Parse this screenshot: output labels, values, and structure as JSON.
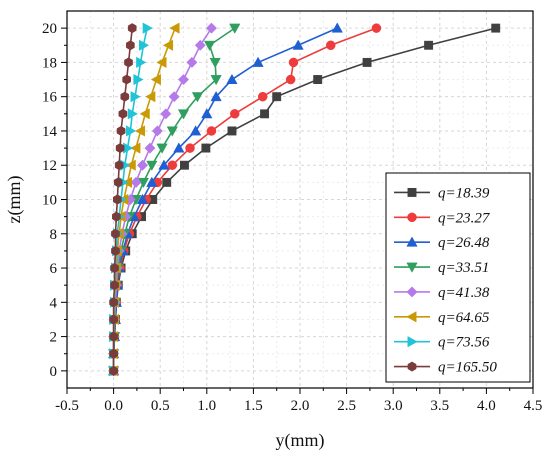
{
  "chart_data": {
    "type": "line",
    "xlabel": "y(mm)",
    "ylabel": "z(mm)",
    "xlim": [
      -0.5,
      4.5
    ],
    "ylim": [
      -1,
      21
    ],
    "x_ticks": [
      "-0.5",
      "0.0",
      "0.5",
      "1.0",
      "1.5",
      "2.0",
      "2.5",
      "3.0",
      "3.5",
      "4.0",
      "4.5"
    ],
    "y_ticks": [
      "0",
      "2",
      "4",
      "6",
      "8",
      "10",
      "12",
      "14",
      "16",
      "18",
      "20"
    ],
    "grid": true,
    "legend_position": "bottom-right",
    "z": [
      0,
      1,
      2,
      3,
      4,
      5,
      6,
      7,
      8,
      9,
      10,
      11,
      12,
      13,
      14,
      15,
      16,
      17,
      18,
      19,
      20
    ],
    "series": [
      {
        "name": "q=18.39",
        "color": "#404040",
        "marker": "square",
        "values": [
          0.0,
          0.0,
          0.01,
          0.02,
          0.03,
          0.05,
          0.08,
          0.13,
          0.2,
          0.3,
          0.42,
          0.57,
          0.76,
          0.99,
          1.27,
          1.62,
          1.75,
          2.19,
          2.72,
          3.38,
          4.1
        ]
      },
      {
        "name": "q=23.27",
        "color": "#ee3b3b",
        "marker": "circle",
        "values": [
          0.0,
          0.0,
          0.01,
          0.02,
          0.03,
          0.04,
          0.07,
          0.11,
          0.17,
          0.25,
          0.35,
          0.47,
          0.63,
          0.82,
          1.05,
          1.3,
          1.6,
          1.9,
          1.93,
          2.33,
          2.82
        ]
      },
      {
        "name": "q=26.48",
        "color": "#1f5fd1",
        "marker": "triangle-up",
        "values": [
          0.0,
          0.0,
          0.01,
          0.02,
          0.03,
          0.04,
          0.06,
          0.1,
          0.15,
          0.22,
          0.31,
          0.41,
          0.54,
          0.7,
          0.88,
          1.0,
          1.1,
          1.27,
          1.55,
          1.98,
          2.4
        ]
      },
      {
        "name": "q=33.51",
        "color": "#2f9e5e",
        "marker": "triangle-down",
        "values": [
          0.0,
          0.0,
          0.01,
          0.01,
          0.02,
          0.03,
          0.05,
          0.08,
          0.12,
          0.17,
          0.24,
          0.32,
          0.41,
          0.52,
          0.63,
          0.75,
          0.9,
          1.1,
          1.09,
          1.03,
          1.3
        ]
      },
      {
        "name": "q=41.38",
        "color": "#b57ae8",
        "marker": "diamond",
        "values": [
          0.0,
          0.0,
          0.0,
          0.01,
          0.02,
          0.03,
          0.04,
          0.06,
          0.09,
          0.13,
          0.18,
          0.24,
          0.31,
          0.39,
          0.47,
          0.56,
          0.65,
          0.75,
          0.84,
          0.93,
          1.05
        ]
      },
      {
        "name": "q=64.65",
        "color": "#c99a06",
        "marker": "triangle-left",
        "values": [
          0.0,
          0.0,
          0.0,
          0.01,
          0.01,
          0.02,
          0.03,
          0.04,
          0.06,
          0.08,
          0.11,
          0.15,
          0.19,
          0.24,
          0.29,
          0.34,
          0.4,
          0.46,
          0.52,
          0.59,
          0.66
        ]
      },
      {
        "name": "q=73.56",
        "color": "#21c3d6",
        "marker": "triangle-right",
        "values": [
          0.0,
          0.0,
          0.0,
          0.0,
          0.01,
          0.01,
          0.02,
          0.03,
          0.04,
          0.06,
          0.08,
          0.1,
          0.12,
          0.15,
          0.18,
          0.2,
          0.23,
          0.26,
          0.29,
          0.32,
          0.36
        ]
      },
      {
        "name": "q=165.50",
        "color": "#7a3b3b",
        "marker": "hexagon",
        "values": [
          0.0,
          0.0,
          0.0,
          0.0,
          0.0,
          0.01,
          0.01,
          0.02,
          0.02,
          0.03,
          0.04,
          0.05,
          0.06,
          0.07,
          0.08,
          0.1,
          0.12,
          0.14,
          0.16,
          0.18,
          0.2
        ]
      }
    ]
  }
}
